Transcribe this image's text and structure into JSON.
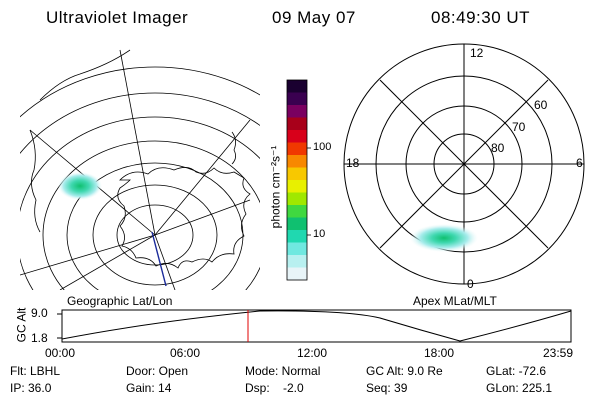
{
  "header": {
    "title": "Ultraviolet Imager",
    "date": "09 May 07",
    "time": "08:49:30 UT"
  },
  "colorbar": {
    "label": "photon cm⁻²s⁻¹",
    "ticks": [
      "100",
      "10"
    ],
    "colors": [
      "#1a0030",
      "#3a0050",
      "#7a0060",
      "#a8001a",
      "#d8001a",
      "#f03800",
      "#f88800",
      "#f8c800",
      "#e8f000",
      "#a0e800",
      "#40d840",
      "#10c070",
      "#20d8b0",
      "#70e8e0",
      "#b8f0f0",
      "#e8f4f8"
    ]
  },
  "left_map": {
    "caption": "Geographic Lat/Lon"
  },
  "right_map": {
    "caption": "Apex MLat/MLT",
    "mlt_labels": [
      "12",
      "18",
      "6",
      "0"
    ],
    "lat_labels": [
      "60",
      "70",
      "80"
    ]
  },
  "timeline": {
    "axis_label": "GC Alt",
    "y_ticks": [
      "9.0",
      "1.8"
    ],
    "x_ticks": [
      "00:00",
      "06:00",
      "12:00",
      "18:00",
      "23:59"
    ],
    "marker_time": "08:49:30",
    "marker_color": "#e00000"
  },
  "info": {
    "filter": "Flt: LBHL",
    "ip": "IP: 36.0",
    "door": "Door: Open",
    "gain": "Gain: 14",
    "mode": "Mode: Normal",
    "dsp": "Dsp:    -2.0",
    "gc_alt": "GC Alt: 9.0 Re",
    "seq": "Seq: 39",
    "glat": "GLat: -72.6",
    "glon": "GLon: 225.1"
  }
}
